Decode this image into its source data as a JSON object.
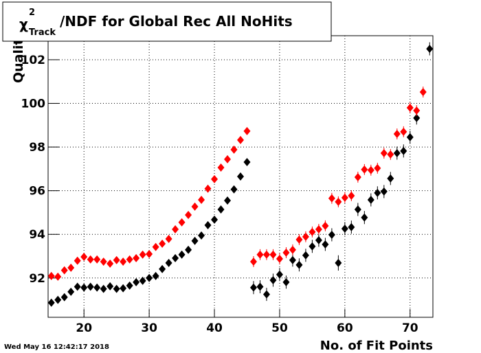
{
  "chart_data": {
    "type": "scatter",
    "title_symbol": "χ",
    "title_superscript": "2",
    "title_subscript": "Track",
    "title_rest": "/NDF for Global Rec All NoHits",
    "x_label": "No. of Fit Points",
    "y_label": "Quality",
    "timestamp": "Wed May 16 12:42:17 2018",
    "xlim": [
      14.5,
      73.5
    ],
    "ylim": [
      90.2,
      103.1
    ],
    "xticks": [
      20,
      30,
      40,
      50,
      60,
      70
    ],
    "yticks": [
      92,
      94,
      96,
      98,
      100,
      102
    ],
    "grid": true,
    "x": [
      15,
      16,
      17,
      18,
      19,
      20,
      21,
      22,
      23,
      24,
      25,
      26,
      27,
      28,
      29,
      30,
      31,
      32,
      33,
      34,
      35,
      36,
      37,
      38,
      39,
      40,
      41,
      42,
      43,
      44,
      45,
      46,
      47,
      48,
      49,
      50,
      51,
      52,
      53,
      54,
      55,
      56,
      57,
      58,
      59,
      60,
      61,
      62,
      63,
      64,
      65,
      66,
      67,
      68,
      69,
      70,
      71,
      72,
      73
    ],
    "series": [
      {
        "color": "#000000",
        "values": [
          90.87,
          91.0,
          91.12,
          91.37,
          91.6,
          91.56,
          91.6,
          91.56,
          91.5,
          91.62,
          91.5,
          91.53,
          91.65,
          91.81,
          91.87,
          92.0,
          92.09,
          92.41,
          92.69,
          92.91,
          93.07,
          93.29,
          93.7,
          93.95,
          94.42,
          94.67,
          95.14,
          95.55,
          96.06,
          96.65,
          97.31,
          91.56,
          91.6,
          91.25,
          91.9,
          92.16,
          91.81,
          92.82,
          92.6,
          93.04,
          93.45,
          93.73,
          93.54,
          93.98,
          92.69,
          94.26,
          94.33,
          95.14,
          94.77,
          95.58,
          95.9,
          95.96,
          96.56,
          97.72,
          97.82,
          98.45,
          99.33,
          null,
          102.5
        ],
        "errors": [
          0.05,
          0.05,
          0.05,
          0.05,
          0.05,
          0.05,
          0.05,
          0.05,
          0.05,
          0.05,
          0.05,
          0.05,
          0.05,
          0.05,
          0.05,
          0.05,
          0.05,
          0.05,
          0.05,
          0.05,
          0.05,
          0.05,
          0.05,
          0.05,
          0.05,
          0.05,
          0.05,
          0.05,
          0.05,
          0.05,
          0.05,
          0.3,
          0.3,
          0.3,
          0.3,
          0.3,
          0.3,
          0.3,
          0.3,
          0.3,
          0.3,
          0.3,
          0.3,
          0.3,
          0.35,
          0.3,
          0.3,
          0.3,
          0.3,
          0.3,
          0.3,
          0.3,
          0.3,
          0.3,
          0.3,
          0.3,
          0.3,
          null,
          0.3
        ]
      },
      {
        "color": "#ff0000",
        "values": [
          92.09,
          92.06,
          92.35,
          92.47,
          92.79,
          92.97,
          92.85,
          92.85,
          92.75,
          92.66,
          92.82,
          92.75,
          92.85,
          92.91,
          93.07,
          93.1,
          93.42,
          93.57,
          93.79,
          94.23,
          94.55,
          94.89,
          95.27,
          95.58,
          96.09,
          96.53,
          97.06,
          97.44,
          97.88,
          98.32,
          98.73,
          92.75,
          93.07,
          93.07,
          93.07,
          92.88,
          93.16,
          93.29,
          93.76,
          93.89,
          94.11,
          94.23,
          94.39,
          95.65,
          95.49,
          95.68,
          95.77,
          96.62,
          96.97,
          96.94,
          97.03,
          97.72,
          97.66,
          98.6,
          98.7,
          99.8,
          99.67,
          100.52,
          null
        ],
        "errors": [
          0.05,
          0.05,
          0.05,
          0.05,
          0.05,
          0.05,
          0.05,
          0.05,
          0.05,
          0.05,
          0.05,
          0.05,
          0.05,
          0.05,
          0.05,
          0.05,
          0.05,
          0.05,
          0.05,
          0.05,
          0.05,
          0.05,
          0.05,
          0.05,
          0.05,
          0.05,
          0.05,
          0.05,
          0.05,
          0.05,
          0.05,
          0.25,
          0.25,
          0.25,
          0.25,
          0.25,
          0.25,
          0.25,
          0.25,
          0.25,
          0.25,
          0.25,
          0.25,
          0.25,
          0.25,
          0.25,
          0.25,
          0.25,
          0.25,
          0.25,
          0.25,
          0.25,
          0.25,
          0.25,
          0.25,
          0.25,
          0.25,
          0.25,
          null
        ]
      }
    ]
  }
}
